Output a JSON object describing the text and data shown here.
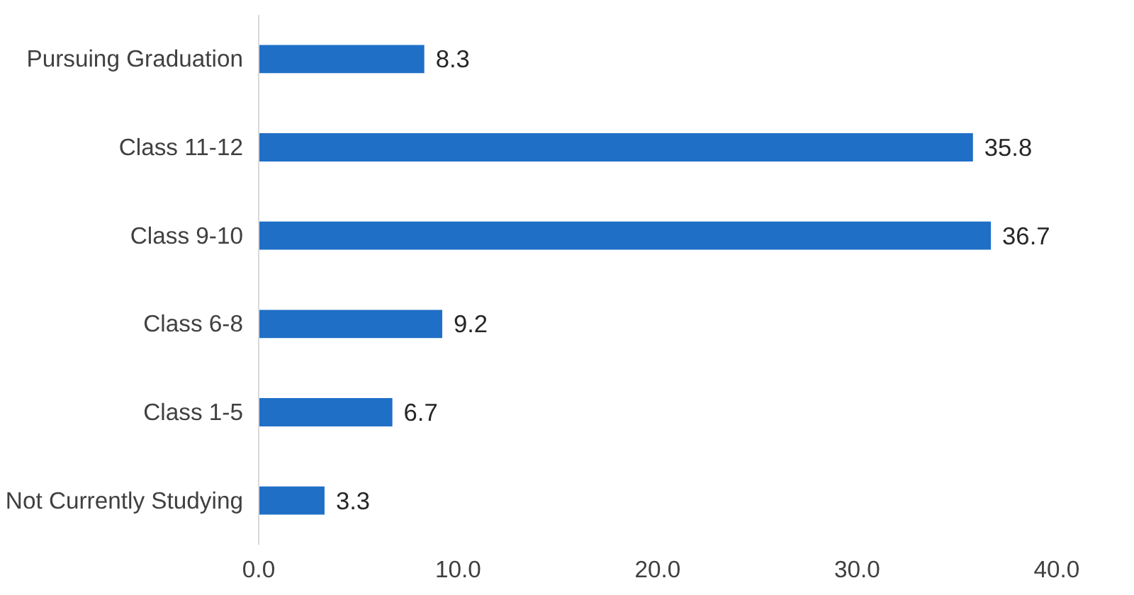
{
  "chart_data": {
    "type": "bar",
    "orientation": "horizontal",
    "categories": [
      "Pursuing Graduation",
      "Class 11-12",
      "Class 9-10",
      "Class 6-8",
      "Class 1-5",
      "Not Currently Studying"
    ],
    "values": [
      8.3,
      35.8,
      36.7,
      9.2,
      6.7,
      3.3
    ],
    "color": "#1f6fc6",
    "xlim": [
      0,
      40
    ],
    "xticks": [
      {
        "value": 0,
        "label": "0.0"
      },
      {
        "value": 10,
        "label": "10.0"
      },
      {
        "value": 20,
        "label": "20.0"
      },
      {
        "value": 30,
        "label": "30.0"
      },
      {
        "value": 40,
        "label": "40.0"
      }
    ],
    "data_labels": true,
    "grid": false
  }
}
